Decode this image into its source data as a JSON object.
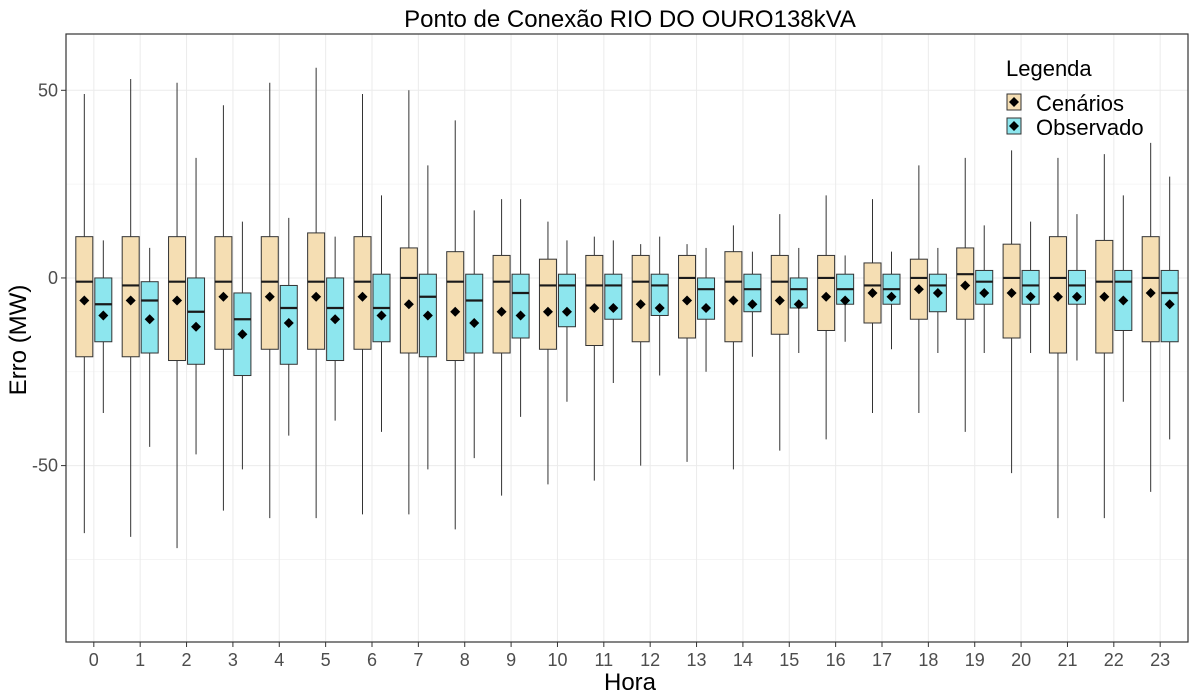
{
  "chart_data": {
    "type": "boxplot",
    "title": "Ponto de Conexão RIO DO OURO138kVA",
    "xlabel": "Hora",
    "ylabel": "Erro (MW)",
    "ylim": [
      -97,
      65
    ],
    "yticks": [
      50,
      0,
      -50
    ],
    "ytick_labels": [
      "50",
      "0",
      "-50"
    ],
    "grid": true,
    "legend": {
      "title": "Legenda",
      "position": "top-right"
    },
    "categories": [
      "0",
      "1",
      "2",
      "3",
      "4",
      "5",
      "6",
      "7",
      "8",
      "9",
      "10",
      "11",
      "12",
      "13",
      "14",
      "15",
      "16",
      "17",
      "18",
      "19",
      "20",
      "21",
      "22",
      "23"
    ],
    "series": [
      {
        "name": "Cenários",
        "color": "#f5deb3",
        "whisker_low": [
          -68,
          -69,
          -72,
          -62,
          -64,
          -64,
          -63,
          -63,
          -67,
          -58,
          -55,
          -54,
          -50,
          -49,
          -51,
          -46,
          -43,
          -36,
          -36,
          -41,
          -52,
          -64,
          -64,
          -57
        ],
        "q1": [
          -21,
          -21,
          -22,
          -19,
          -19,
          -19,
          -19,
          -20,
          -22,
          -20,
          -19,
          -18,
          -17,
          -16,
          -17,
          -15,
          -14,
          -12,
          -11,
          -11,
          -16,
          -20,
          -20,
          -17
        ],
        "median": [
          -1,
          -2,
          -1,
          -1,
          -1,
          -1,
          -1,
          0,
          -1,
          -1,
          -2,
          -2,
          -1,
          0,
          -1,
          -1,
          0,
          -2,
          0,
          1,
          0,
          0,
          -1,
          0
        ],
        "q3": [
          11,
          11,
          11,
          11,
          11,
          12,
          11,
          8,
          7,
          6,
          5,
          6,
          6,
          6,
          7,
          6,
          6,
          4,
          5,
          8,
          9,
          11,
          10,
          11
        ],
        "whisker_high": [
          49,
          53,
          52,
          46,
          52,
          56,
          49,
          50,
          42,
          21,
          15,
          11,
          9,
          9,
          14,
          17,
          22,
          21,
          30,
          32,
          34,
          32,
          33,
          36
        ],
        "mean": [
          -6,
          -6,
          -6,
          -5,
          -5,
          -5,
          -5,
          -7,
          -9,
          -9,
          -9,
          -8,
          -7,
          -6,
          -6,
          -6,
          -5,
          -4,
          -3,
          -2,
          -4,
          -5,
          -5,
          -4
        ]
      },
      {
        "name": "Observado",
        "color": "#8de6ee",
        "whisker_low": [
          -36,
          -45,
          -47,
          -51,
          -42,
          -38,
          -41,
          -51,
          -48,
          -37,
          -33,
          -28,
          -26,
          -25,
          -21,
          -20,
          -17,
          -19,
          -20,
          -20,
          -20,
          -22,
          -33,
          -43
        ],
        "q1": [
          -17,
          -20,
          -23,
          -26,
          -23,
          -22,
          -17,
          -21,
          -20,
          -16,
          -13,
          -11,
          -10,
          -11,
          -9,
          -8,
          -7,
          -7,
          -9,
          -7,
          -7,
          -7,
          -14,
          -17
        ],
        "median": [
          -7,
          -6,
          -9,
          -11,
          -8,
          -8,
          -8,
          -5,
          -6,
          -4,
          -2,
          -2,
          -2,
          -3,
          -3,
          -3,
          -3,
          -3,
          -2,
          -1,
          -2,
          -2,
          -1,
          -4
        ],
        "q3": [
          0,
          -1,
          0,
          -4,
          -2,
          0,
          1,
          1,
          1,
          1,
          1,
          1,
          1,
          0,
          1,
          0,
          1,
          1,
          1,
          2,
          2,
          2,
          2,
          2
        ],
        "whisker_high": [
          10,
          8,
          32,
          15,
          16,
          11,
          22,
          30,
          18,
          21,
          10,
          10,
          11,
          8,
          7,
          8,
          6,
          7,
          8,
          14,
          15,
          17,
          22,
          27
        ],
        "mean": [
          -10,
          -11,
          -13,
          -15,
          -12,
          -11,
          -10,
          -10,
          -12,
          -10,
          -9,
          -8,
          -8,
          -8,
          -7,
          -7,
          -6,
          -5,
          -4,
          -4,
          -5,
          -5,
          -6,
          -7
        ]
      }
    ]
  }
}
